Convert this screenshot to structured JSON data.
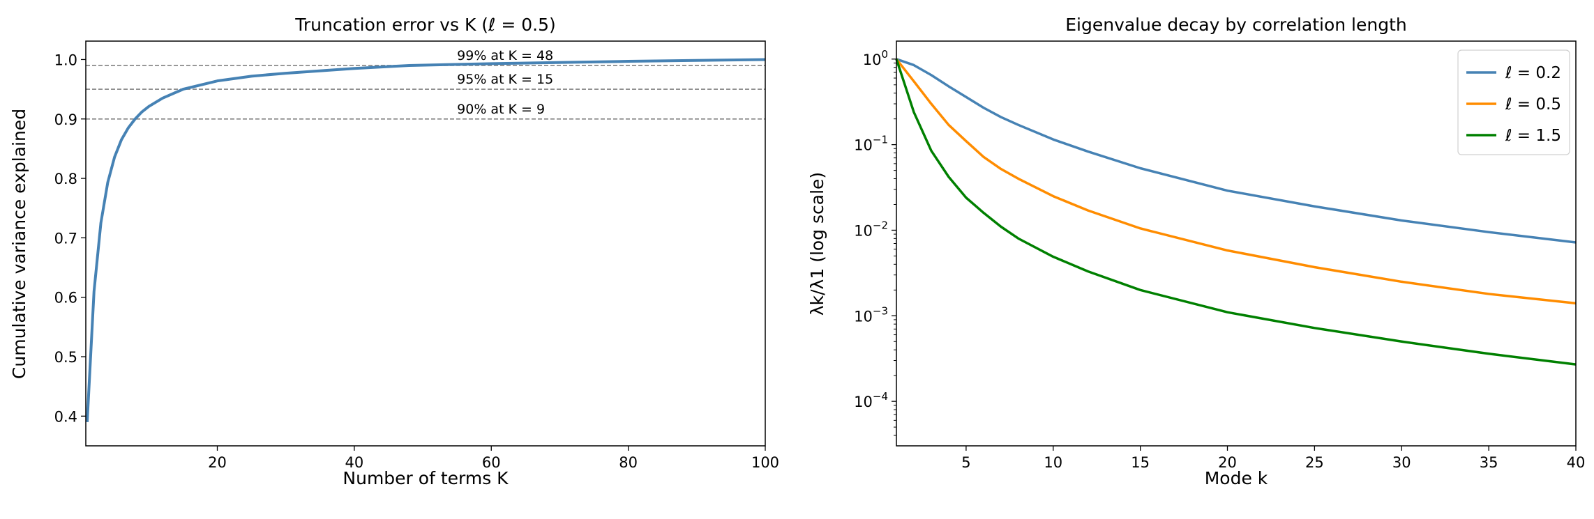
{
  "chart_data": [
    {
      "type": "line",
      "title": "Truncation error vs K  (ℓ = 0.5)",
      "xlabel": "Number of terms K",
      "ylabel": "Cumulative variance explained",
      "xlim": [
        0.8,
        100
      ],
      "ylim": [
        0.35,
        1.031
      ],
      "xticks": [
        20,
        40,
        60,
        80,
        100
      ],
      "yticks": [
        0.4,
        0.5,
        0.6,
        0.7,
        0.8,
        0.9,
        1.0
      ],
      "grid": false,
      "series": [
        {
          "name": "cumulative variance",
          "color": "#4682b4",
          "x": [
            1,
            2,
            3,
            4,
            5,
            6,
            7,
            8,
            9,
            10,
            12,
            15,
            20,
            25,
            30,
            40,
            48,
            60,
            80,
            100
          ],
          "y": [
            0.39,
            0.61,
            0.725,
            0.793,
            0.836,
            0.865,
            0.885,
            0.9,
            0.912,
            0.921,
            0.935,
            0.95,
            0.964,
            0.972,
            0.977,
            0.985,
            0.99,
            0.993,
            0.997,
            1.0
          ]
        }
      ],
      "hlines": [
        {
          "y": 0.99,
          "label": "99% at K = 48"
        },
        {
          "y": 0.95,
          "label": "95% at K = 15"
        },
        {
          "y": 0.9,
          "label": "90% at K = 9"
        }
      ],
      "annotation_x": 55
    },
    {
      "type": "line",
      "title": "Eigenvalue decay by correlation length",
      "xlabel": "Mode k",
      "ylabel": "λk/λ1 (log scale)",
      "yscale": "log",
      "xlim": [
        1,
        40
      ],
      "ylim_log10": [
        -4.52,
        0.21
      ],
      "xticks": [
        5,
        10,
        15,
        20,
        25,
        30,
        35,
        40
      ],
      "yticks_exp": [
        0,
        -1,
        -2,
        -3,
        -4
      ],
      "grid": false,
      "legend": "top-right",
      "x": [
        1,
        2,
        3,
        4,
        5,
        6,
        7,
        8,
        10,
        12,
        15,
        20,
        25,
        30,
        35,
        40
      ],
      "series": [
        {
          "name": "ℓ = 0.2",
          "color": "#4682b4",
          "values": [
            1,
            0.85,
            0.65,
            0.48,
            0.36,
            0.27,
            0.21,
            0.17,
            0.115,
            0.083,
            0.053,
            0.029,
            0.019,
            0.013,
            0.0095,
            0.0072
          ]
        },
        {
          "name": "ℓ = 0.5",
          "color": "#ff8c00",
          "values": [
            1,
            0.55,
            0.3,
            0.17,
            0.11,
            0.072,
            0.052,
            0.04,
            0.025,
            0.017,
            0.0105,
            0.0058,
            0.0037,
            0.0025,
            0.0018,
            0.0014
          ]
        },
        {
          "name": "ℓ = 1.5",
          "color": "#008000",
          "values": [
            1,
            0.24,
            0.085,
            0.042,
            0.024,
            0.016,
            0.011,
            0.008,
            0.0049,
            0.0033,
            0.002,
            0.0011,
            0.00072,
            0.0005,
            0.00036,
            0.00027
          ]
        }
      ]
    }
  ]
}
